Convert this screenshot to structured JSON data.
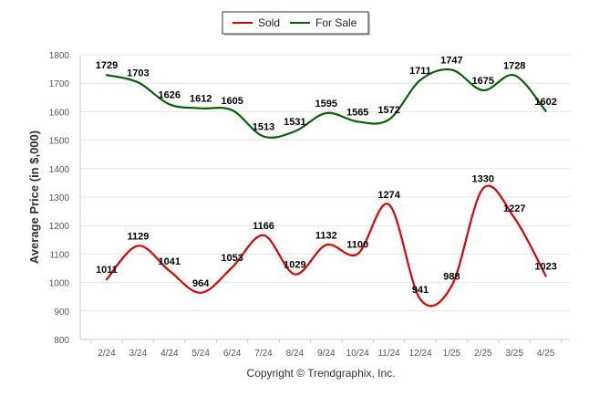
{
  "chart_data": {
    "type": "line",
    "categories": [
      "2/24",
      "3/24",
      "4/24",
      "5/24",
      "6/24",
      "7/24",
      "8/24",
      "9/24",
      "10/24",
      "11/24",
      "12/24",
      "1/25",
      "2/25",
      "3/25",
      "4/25"
    ],
    "series": [
      {
        "name": "Sold",
        "color": "#e00000",
        "values": [
          1011,
          1129,
          1041,
          964,
          1053,
          1166,
          1029,
          1132,
          1100,
          1274,
          941,
          988,
          1330,
          1227,
          1023
        ]
      },
      {
        "name": "For Sale",
        "color": "#006400",
        "values": [
          1729,
          1703,
          1626,
          1612,
          1605,
          1513,
          1531,
          1595,
          1565,
          1572,
          1711,
          1747,
          1675,
          1728,
          1602
        ]
      }
    ],
    "ylabel": "Average Price (in $,000)",
    "ylim": [
      800,
      1800
    ],
    "yticks": [
      800,
      900,
      1000,
      1100,
      1200,
      1300,
      1400,
      1500,
      1600,
      1700,
      1800
    ],
    "grid": true,
    "legend_position": "top-center",
    "smooth": true
  },
  "footer": {
    "credit": "Copyright © Trendgraphix, Inc."
  }
}
